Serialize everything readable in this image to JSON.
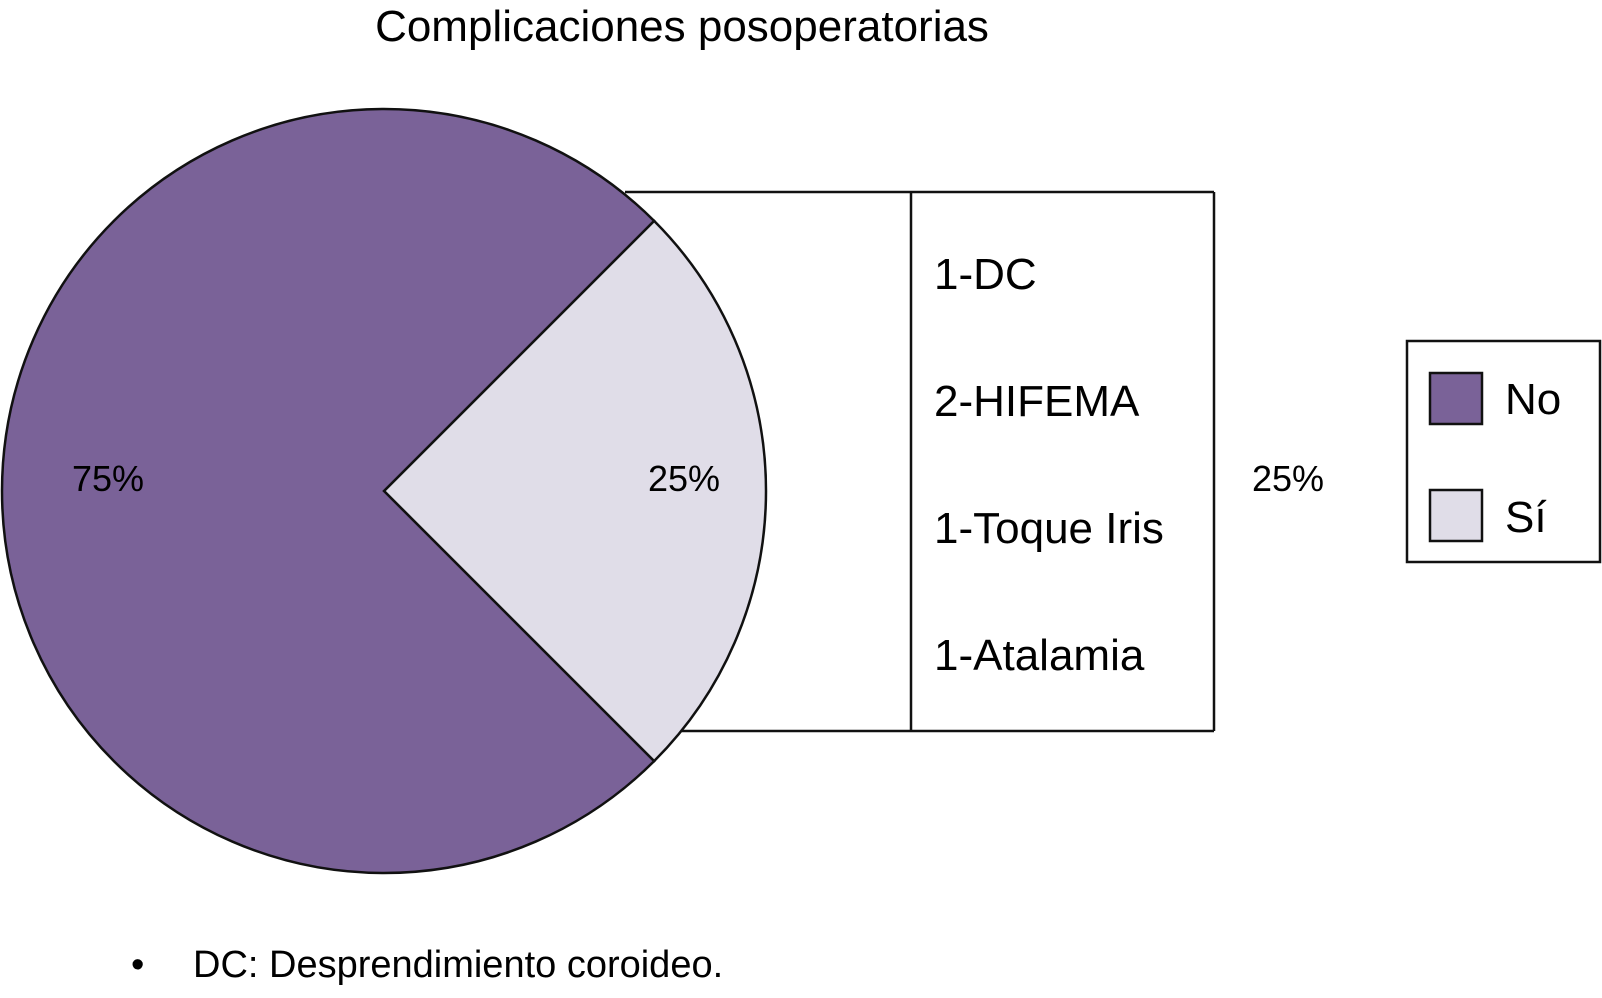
{
  "chart_data": {
    "type": "pie",
    "title": "Complicaciones posoperatorias",
    "slices": [
      {
        "label": "No",
        "value": 75,
        "value_label": "75%",
        "color": "#7a6298"
      },
      {
        "label": "Sí",
        "value": 25,
        "value_label": "25%",
        "color": "#e0dde8"
      }
    ],
    "breakdown": {
      "of_slice": "Sí",
      "value_label": "25%",
      "items": [
        "1-DC",
        "2-HIFEMA",
        "1-Toque Iris",
        "1-Atalamia"
      ]
    },
    "legend": {
      "placement": "right",
      "entries": [
        {
          "label": "No",
          "color": "#7a6298"
        },
        {
          "label": "Sí",
          "color": "#e0dde8"
        }
      ]
    },
    "note": {
      "bullet": "•",
      "text": "DC: Desprendimiento coroideo."
    }
  }
}
